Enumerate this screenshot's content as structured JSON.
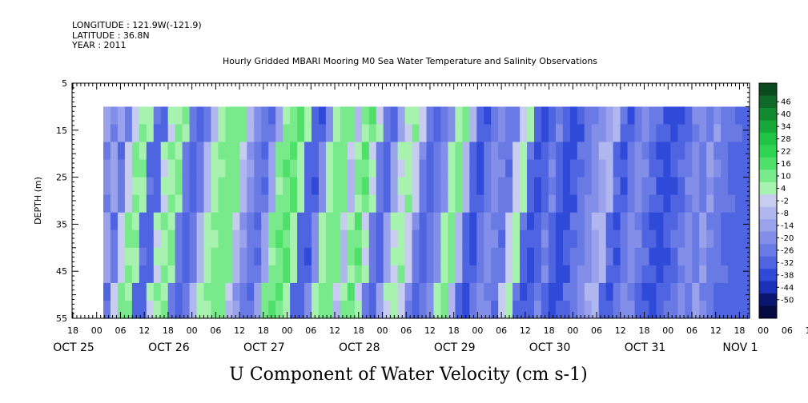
{
  "header": {
    "longitude": "LONGITUDE : 121.9W(-121.9)",
    "latitude": "LATITUDE : 36.8N",
    "year": "YEAR : 2011"
  },
  "chart_data": {
    "type": "heatmap",
    "title": "Hourly Gridded MBARI Mooring M0 Sea Water Temperature and Salinity Observations",
    "xlabel": "",
    "ylabel": "DEPTH (m)",
    "footer_label": "U Component of Water Velocity (cm s-1)",
    "ylim": [
      5,
      55
    ],
    "y_reversed": true,
    "y_ticks": [
      5,
      15,
      25,
      35,
      45,
      55
    ],
    "data_depth_range": [
      10,
      55
    ],
    "x_hour_ticks": [
      "18",
      "00",
      "06",
      "12",
      "18",
      "00",
      "06",
      "12",
      "18",
      "00",
      "06",
      "12",
      "18",
      "00",
      "06",
      "12",
      "18",
      "00",
      "06",
      "12",
      "18",
      "00",
      "06",
      "12",
      "18",
      "00",
      "06",
      "12",
      "18",
      "00",
      "06",
      "12",
      "18"
    ],
    "x_date_labels": [
      "OCT 25",
      "OCT 26",
      "OCT 27",
      "OCT 28",
      "OCT 29",
      "OCT 30",
      "OCT 31",
      "NOV  1"
    ],
    "colorbar_levels": [
      "48",
      "46",
      "40",
      "34",
      "28",
      "22",
      "16",
      "10",
      "4",
      "-2",
      "-8",
      "-14",
      "-20",
      "-26",
      "-32",
      "-38",
      "-44",
      "-50"
    ],
    "colorbar_labels": [
      "46",
      "40",
      "34",
      "28",
      "22",
      "16",
      "10",
      "4",
      "-2",
      "-8",
      "-14",
      "-20",
      "-26",
      "-32",
      "-38",
      "-44",
      "-50"
    ],
    "colorbar_colors": [
      "#0b4a1c",
      "#0e6a26",
      "#118a30",
      "#17a83a",
      "#1fc444",
      "#2fd552",
      "#4fe06a",
      "#78ea8c",
      "#a8f2b0",
      "#c8cdf0",
      "#b0b6ee",
      "#9aa2ec",
      "#838ee8",
      "#6a7ae4",
      "#4f64e0",
      "#2f4ad8",
      "#1a30b8",
      "#0a1670",
      "#050b40"
    ],
    "column_profile_cm_s": [
      -10,
      -20,
      -12,
      -25,
      2,
      10,
      8,
      -28,
      -30,
      4,
      9,
      10,
      -25,
      -30,
      -22,
      -6,
      6,
      10,
      12,
      12,
      -4,
      -16,
      -25,
      -26,
      -10,
      10,
      15,
      16,
      6,
      -28,
      -32,
      -18,
      5,
      12,
      14,
      -4,
      10,
      15,
      4,
      -24,
      -30,
      -12,
      3,
      8,
      2,
      -22,
      -30,
      -24,
      -18,
      6,
      12,
      -6,
      -30,
      -34,
      -24,
      -18,
      -22,
      -26,
      0,
      6,
      -28,
      -34,
      -30,
      -20,
      -30,
      -36,
      -32,
      -26,
      -22,
      -18,
      -10,
      -6,
      -28,
      -32,
      -24,
      -18,
      -22,
      -28,
      -32,
      -36,
      -32,
      -28,
      -22,
      -18,
      -22,
      -14,
      -22,
      -24,
      -28,
      -30
    ]
  }
}
